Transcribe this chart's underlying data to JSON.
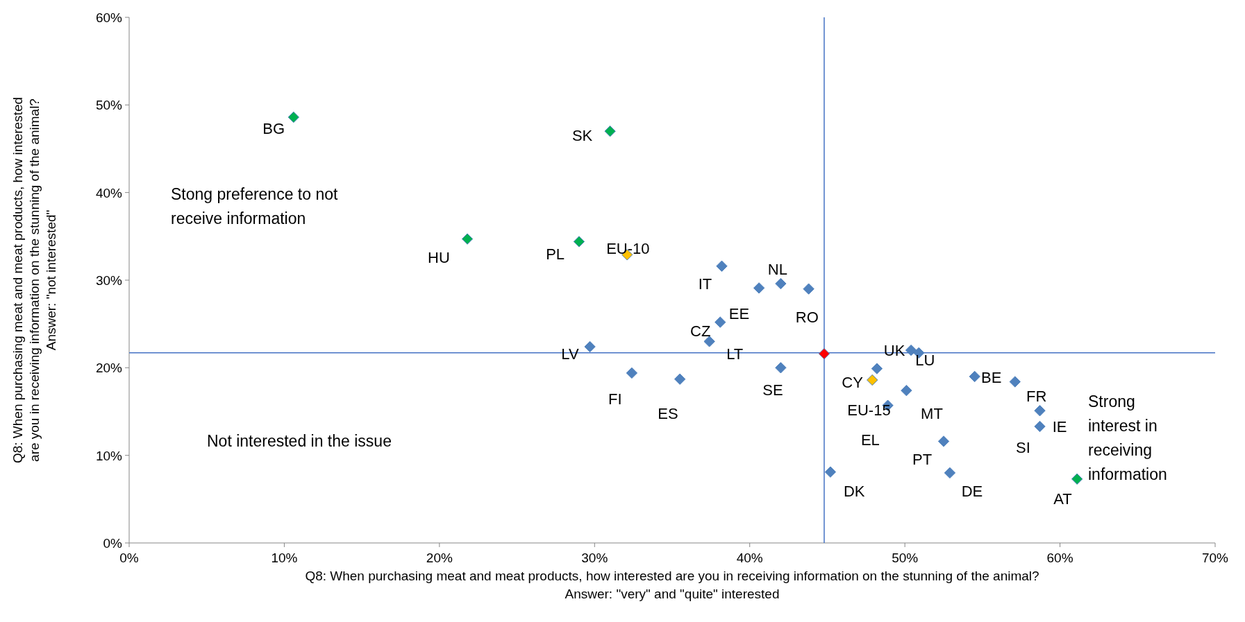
{
  "chart_data": {
    "type": "scatter",
    "xlabel": "Q8: When purchasing meat and meat products, how interested are you in receiving information on the stunning of the animal?\nAnswer: \"very\" and \"quite\" interested",
    "ylabel": "Q8: When purchasing meat and meat products, how interested\nare you in receiving information on the stunning of the animal?\nAnswer: \"not interested\"",
    "xlim": [
      0,
      70
    ],
    "ylim": [
      0,
      60
    ],
    "xticks": [
      {
        "value": 0,
        "label": "0%"
      },
      {
        "value": 10,
        "label": "10%"
      },
      {
        "value": 20,
        "label": "20%"
      },
      {
        "value": 30,
        "label": "30%"
      },
      {
        "value": 40,
        "label": "40%"
      },
      {
        "value": 50,
        "label": "50%"
      },
      {
        "value": 60,
        "label": "60%"
      },
      {
        "value": 70,
        "label": "70%"
      }
    ],
    "yticks": [
      {
        "value": 0,
        "label": "0%"
      },
      {
        "value": 10,
        "label": "10%"
      },
      {
        "value": 20,
        "label": "20%"
      },
      {
        "value": 30,
        "label": "30%"
      },
      {
        "value": 40,
        "label": "40%"
      },
      {
        "value": 50,
        "label": "50%"
      },
      {
        "value": 60,
        "label": "60%"
      }
    ],
    "marker": "diamond",
    "grid": false,
    "series": [
      {
        "color": "#4f81bd",
        "x": [
          38.2,
          40.6,
          42.0,
          43.8,
          38.1,
          37.4,
          29.7,
          32.4,
          35.5,
          42.0,
          45.2,
          48.2,
          50.1,
          48.9,
          52.5,
          52.9,
          50.4,
          50.9,
          54.5,
          57.1,
          58.7,
          58.7
        ],
        "values": [
          31.6,
          29.1,
          29.6,
          29.0,
          25.2,
          23.0,
          22.4,
          19.4,
          18.7,
          20.0,
          8.1,
          19.9,
          17.4,
          15.7,
          11.6,
          8.0,
          22.0,
          21.7,
          19.0,
          18.4,
          15.1,
          13.3
        ]
      },
      {
        "color": "#00b050",
        "x": [
          10.6,
          31.0,
          21.8,
          29.0,
          61.1
        ],
        "values": [
          48.6,
          47.0,
          34.7,
          34.4,
          7.3
        ]
      },
      {
        "color": "#ffc000",
        "x": [
          32.1,
          47.9
        ],
        "values": [
          32.9,
          18.6
        ]
      },
      {
        "color": "#ff0000",
        "x": [
          44.8
        ],
        "values": [
          21.6
        ]
      }
    ],
    "ref_lines": [
      {
        "axis": "x",
        "value": 44.8,
        "color": "#4472c4"
      },
      {
        "axis": "y",
        "value": 21.7,
        "color": "#4472c4"
      }
    ],
    "annotations": [
      "Stong preference to not receive information",
      "Not interested in the issue",
      "Strong interest in receiving information",
      {
        "text": "BG",
        "x": 10.6,
        "y": 48.6
      },
      {
        "text": "SK",
        "x": 31.0,
        "y": 47.0
      },
      {
        "text": "HU",
        "x": 21.8,
        "y": 34.7
      },
      {
        "text": "PL",
        "x": 29.0,
        "y": 34.4
      },
      {
        "text": "EU-10",
        "x": 32.1,
        "y": 32.9
      },
      {
        "text": "IT",
        "x": 38.2,
        "y": 31.6
      },
      {
        "text": "NL",
        "x": 42.0,
        "y": 29.6
      },
      {
        "text": "RO",
        "x": 43.8,
        "y": 29.0
      },
      {
        "text": "EE",
        "x": 40.6,
        "y": 29.1
      },
      {
        "text": "CZ",
        "x": 38.1,
        "y": 25.2
      },
      {
        "text": "LT",
        "x": 37.4,
        "y": 23.0
      },
      {
        "text": "LV",
        "x": 29.7,
        "y": 22.4
      },
      {
        "text": "FI",
        "x": 32.4,
        "y": 19.4
      },
      {
        "text": "ES",
        "x": 35.5,
        "y": 18.7
      },
      {
        "text": "SE",
        "x": 42.0,
        "y": 20.0
      },
      {
        "text": "UK",
        "x": 50.4,
        "y": 22.0
      },
      {
        "text": "LU",
        "x": 50.9,
        "y": 21.7
      },
      {
        "text": "CY",
        "x": 47.9,
        "y": 18.6
      },
      {
        "text": "EU-15",
        "x": 48.2,
        "y": 19.9
      },
      {
        "text": "MT",
        "x": 50.1,
        "y": 17.4
      },
      {
        "text": "EL",
        "x": 48.9,
        "y": 15.7
      },
      {
        "text": "PT",
        "x": 52.5,
        "y": 11.6
      },
      {
        "text": "DE",
        "x": 52.9,
        "y": 8.0
      },
      {
        "text": "BE",
        "x": 54.5,
        "y": 19.0
      },
      {
        "text": "FR",
        "x": 57.1,
        "y": 18.4
      },
      {
        "text": "IE",
        "x": 58.7,
        "y": 13.3
      },
      {
        "text": "SI",
        "x": 58.7,
        "y": 15.1
      },
      {
        "text": "DK",
        "x": 45.2,
        "y": 8.1
      },
      {
        "text": "AT",
        "x": 61.1,
        "y": 7.3
      }
    ]
  }
}
